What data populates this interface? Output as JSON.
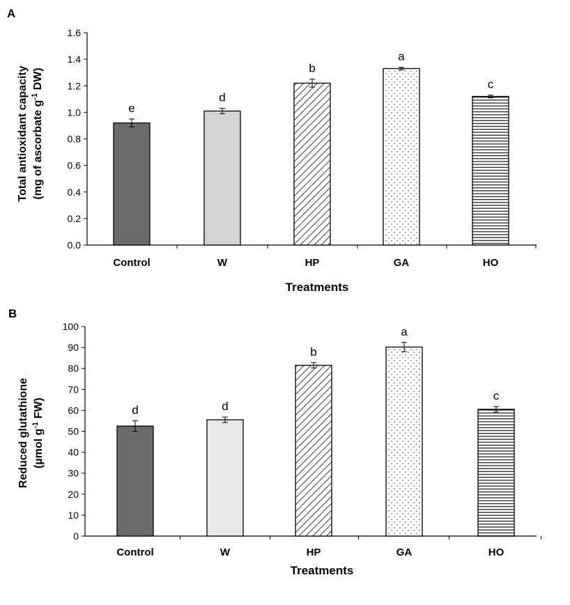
{
  "chart_data": [
    {
      "panel": "A",
      "type": "bar",
      "categories": [
        "Control",
        "W",
        "HP",
        "GA",
        "HO"
      ],
      "values": [
        0.92,
        1.01,
        1.22,
        1.33,
        1.12
      ],
      "errors": [
        0.03,
        0.02,
        0.03,
        0.01,
        0.01
      ],
      "significance": [
        "e",
        "d",
        "b",
        "a",
        "c"
      ],
      "fills": [
        "#6b6b6b",
        "#d4d4d4",
        "diagonal-stripes",
        "dots",
        "horizontal-stripes"
      ],
      "xlabel": "Treatments",
      "ylabel_line1": "Total antioxidant capacity",
      "ylabel_line2_prefix": "(mg of ascorbate g",
      "ylabel_line2_sup": "-1",
      "ylabel_line2_suffix": " DW)",
      "ylim": [
        0,
        1.6
      ],
      "yticks": [
        "0.0",
        "0.2",
        "0.4",
        "0.6",
        "0.8",
        "1.0",
        "1.2",
        "1.4",
        "1.6"
      ],
      "grid": false
    },
    {
      "panel": "B",
      "type": "bar",
      "categories": [
        "Control",
        "W",
        "HP",
        "GA",
        "HO"
      ],
      "values": [
        52.5,
        55.5,
        81.5,
        90.2,
        60.5
      ],
      "errors": [
        2.5,
        1.3,
        1.3,
        2.2,
        1.3
      ],
      "significance": [
        "d",
        "d",
        "b",
        "a",
        "c"
      ],
      "fills": [
        "#6b6b6b",
        "#e8e8e8",
        "diagonal-stripes",
        "dots",
        "horizontal-stripes"
      ],
      "xlabel": "Treatments",
      "ylabel_line1": "Reduced glutathione",
      "ylabel_line2_prefix": "(µmol g",
      "ylabel_line2_sup": "-1",
      "ylabel_line2_suffix": " FW)",
      "ylim": [
        0,
        100
      ],
      "yticks": [
        "0",
        "10",
        "20",
        "30",
        "40",
        "50",
        "60",
        "70",
        "80",
        "90",
        "100"
      ],
      "grid": false
    }
  ]
}
